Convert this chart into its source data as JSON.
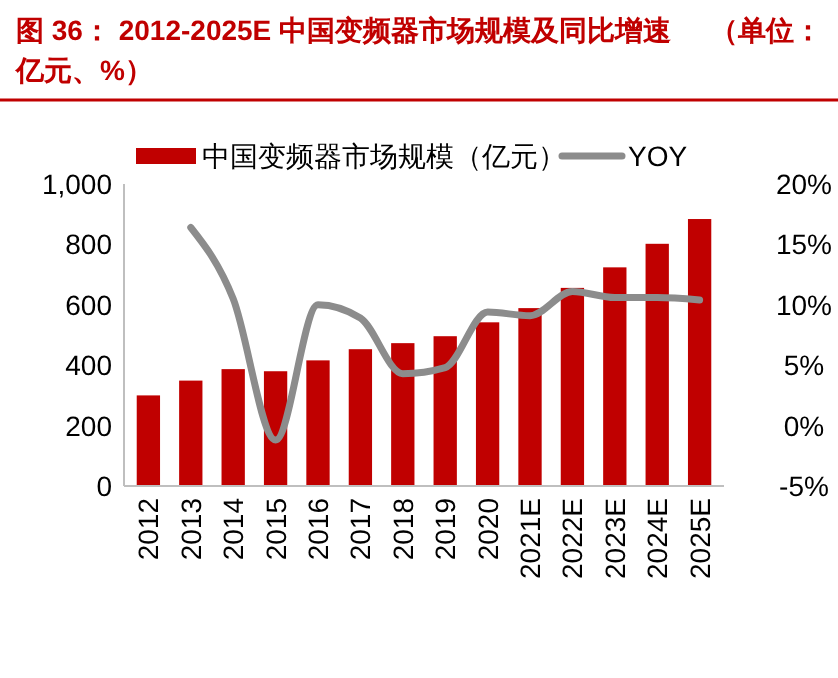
{
  "chart_data": {
    "type": "bar",
    "title": "图 36： 2012-2025E 中国变频器市场规模及同比增速（单位：亿元、%）",
    "categories": [
      "2012",
      "2013",
      "2014",
      "2015",
      "2016",
      "2017",
      "2018",
      "2019",
      "2020",
      "2021E",
      "2022E",
      "2023E",
      "2024E",
      "2025E"
    ],
    "series": [
      {
        "name": "中国变频器市场规模（亿元）",
        "color": "#c00000",
        "values": [
          300,
          349,
          387,
          380,
          416,
          453,
          473,
          496,
          542,
          589,
          656,
          724,
          802,
          884
        ]
      },
      {
        "name": "YOY",
        "type": "line",
        "axis": "y2",
        "color": "#8c8c8c",
        "values": [
          null,
          16.4,
          10.5,
          -1.2,
          10.0,
          8.9,
          4.3,
          4.8,
          9.4,
          9.1,
          11.1,
          10.6,
          10.6,
          10.4
        ]
      }
    ],
    "ylim": [
      0,
      1000
    ],
    "yticks": [
      0,
      {
        "value": 200,
        "label": "200"
      },
      {
        "value": 400,
        "label": "400"
      },
      {
        "value": 600,
        "label": "600"
      },
      {
        "value": 800,
        "label": "800"
      },
      {
        "value": 1000,
        "label": "1,000"
      }
    ],
    "y2lim": [
      -5,
      20
    ],
    "y2ticks": [
      {
        "value": -5,
        "label": "-5%"
      },
      {
        "value": 0,
        "label": "0%"
      },
      {
        "value": 5,
        "label": "5%"
      },
      {
        "value": 10,
        "label": "10%"
      },
      {
        "value": 15,
        "label": "15%"
      },
      {
        "value": 20,
        "label": "20%"
      }
    ],
    "legend": "top",
    "marker": "none",
    "line_style": "solid"
  }
}
